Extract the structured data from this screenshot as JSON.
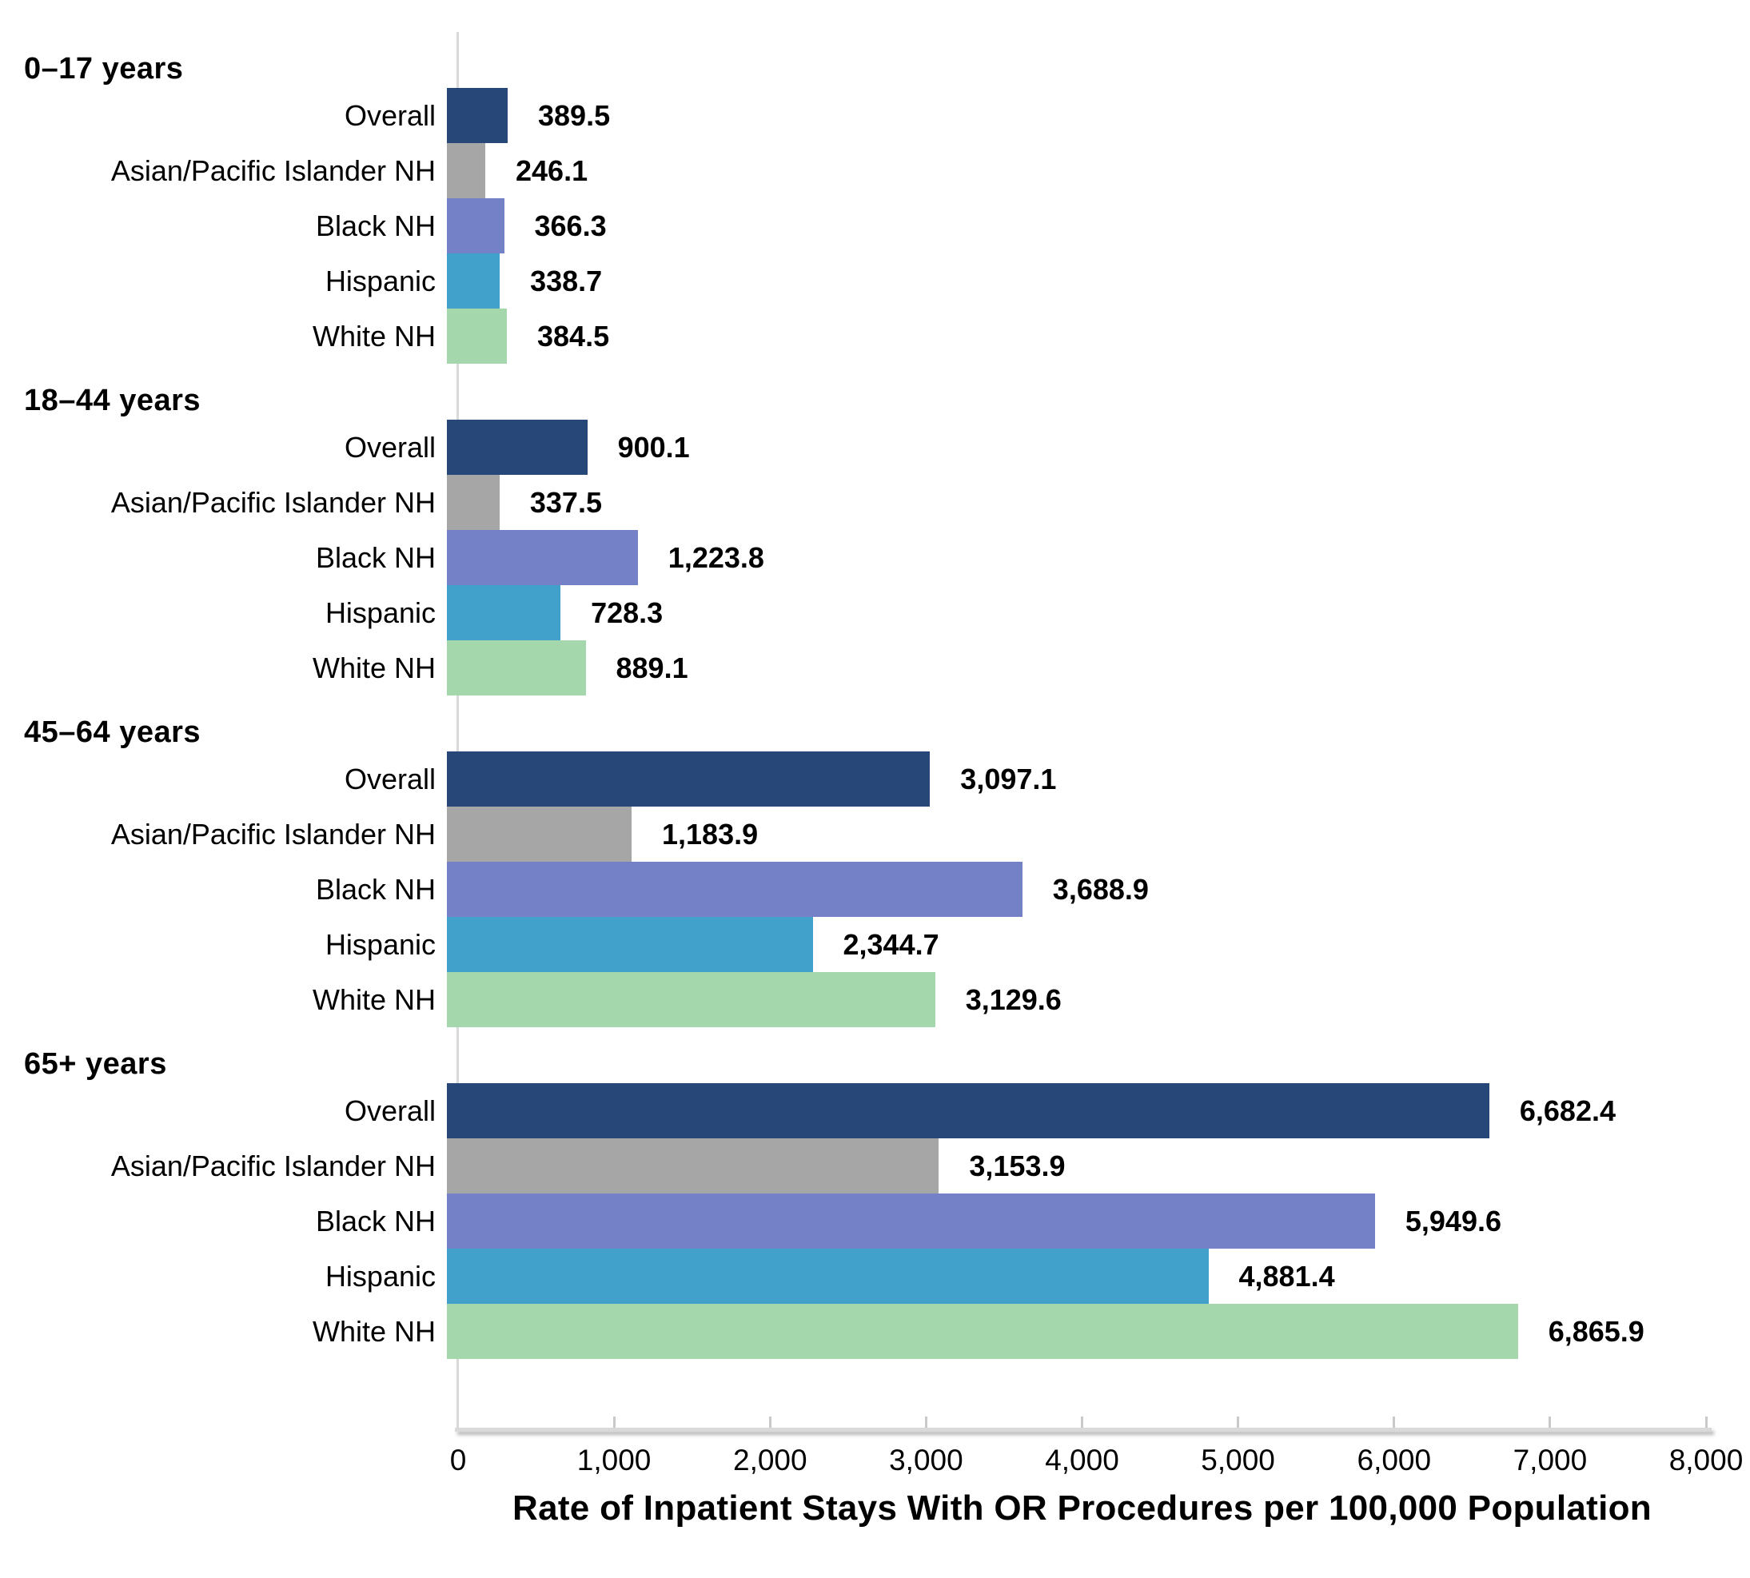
{
  "chart_data": {
    "type": "bar",
    "orientation": "horizontal",
    "title": "",
    "xlabel": "Rate of Inpatient Stays With OR Procedures per 100,000 Population",
    "ylabel": "",
    "xlim": [
      0,
      8000
    ],
    "grid": false,
    "legend": "none",
    "x_tick_labels": [
      "0",
      "1,000",
      "2,000",
      "3,000",
      "4,000",
      "5,000",
      "6,000",
      "7,000",
      "8,000"
    ],
    "category_colors": {
      "Overall": "#264778",
      "Asian/Pacific Islander NH": "#a6a6a6",
      "Black NH": "#7581c6",
      "Hispanic": "#42a1ca",
      "White NH": "#a5d7ac"
    },
    "groups": [
      {
        "label": "0–17 years",
        "bars": [
          {
            "category": "Overall",
            "value": 389.5,
            "value_label": "389.5"
          },
          {
            "category": "Asian/Pacific Islander NH",
            "value": 246.1,
            "value_label": "246.1"
          },
          {
            "category": "Black NH",
            "value": 366.3,
            "value_label": "366.3"
          },
          {
            "category": "Hispanic",
            "value": 338.7,
            "value_label": "338.7"
          },
          {
            "category": "White NH",
            "value": 384.5,
            "value_label": "384.5"
          }
        ]
      },
      {
        "label": "18–44 years",
        "bars": [
          {
            "category": "Overall",
            "value": 900.1,
            "value_label": "900.1"
          },
          {
            "category": "Asian/Pacific Islander NH",
            "value": 337.5,
            "value_label": "337.5"
          },
          {
            "category": "Black NH",
            "value": 1223.8,
            "value_label": "1,223.8"
          },
          {
            "category": "Hispanic",
            "value": 728.3,
            "value_label": "728.3"
          },
          {
            "category": "White NH",
            "value": 889.1,
            "value_label": "889.1"
          }
        ]
      },
      {
        "label": "45–64 years",
        "bars": [
          {
            "category": "Overall",
            "value": 3097.1,
            "value_label": "3,097.1"
          },
          {
            "category": "Asian/Pacific Islander NH",
            "value": 1183.9,
            "value_label": "1,183.9"
          },
          {
            "category": "Black NH",
            "value": 3688.9,
            "value_label": "3,688.9"
          },
          {
            "category": "Hispanic",
            "value": 2344.7,
            "value_label": "2,344.7"
          },
          {
            "category": "White NH",
            "value": 3129.6,
            "value_label": "3,129.6"
          }
        ]
      },
      {
        "label": "65+ years",
        "bars": [
          {
            "category": "Overall",
            "value": 6682.4,
            "value_label": "6,682.4"
          },
          {
            "category": "Asian/Pacific Islander NH",
            "value": 3153.9,
            "value_label": "3,153.9"
          },
          {
            "category": "Black NH",
            "value": 5949.6,
            "value_label": "5,949.6"
          },
          {
            "category": "Hispanic",
            "value": 4881.4,
            "value_label": "4,881.4"
          },
          {
            "category": "White NH",
            "value": 6865.9,
            "value_label": "6,865.9"
          }
        ]
      }
    ]
  },
  "layout_colors": {
    "axis_line": "#d9d9d9",
    "tick": "#c9c9c9",
    "text": "#000000",
    "background": "#ffffff"
  }
}
